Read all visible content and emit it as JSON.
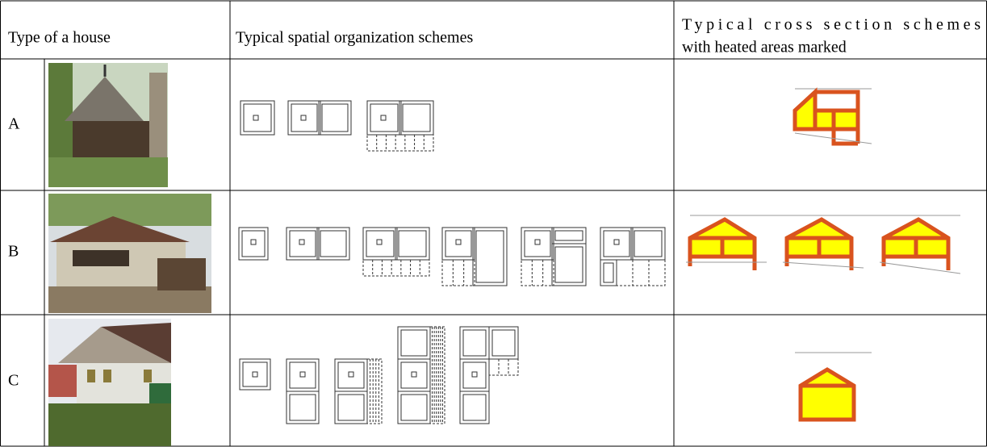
{
  "table": {
    "header": [
      "Type of a house",
      "Typical spatial organization schemes",
      [
        "Typical cross section schemes",
        "with heated areas marked"
      ]
    ],
    "rows": [
      [
        "A"
      ],
      [
        "B"
      ],
      [
        "C"
      ]
    ]
  }
}
